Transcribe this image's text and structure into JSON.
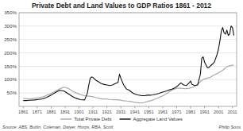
{
  "chart_data": {
    "type": "line",
    "title": "Private Debt and Land Values to GDP Ratios 1861 - 2012",
    "annotations": [
      "Source: ABS, Butlin, Coleman, Dwyer, Horps, RBA, Scott",
      "Philip Soos"
    ],
    "xlim": [
      1858,
      2014
    ],
    "xticks": [
      1861,
      1871,
      1881,
      1891,
      1901,
      1911,
      1921,
      1931,
      1941,
      1951,
      1961,
      1971,
      1981,
      1991,
      2001,
      2011
    ],
    "ylim": [
      0,
      350
    ],
    "yticks": [
      {
        "value": 50,
        "label": "50%"
      },
      {
        "value": 100,
        "label": "100%"
      },
      {
        "value": 150,
        "label": "150%"
      },
      {
        "value": 200,
        "label": "200%"
      },
      {
        "value": 250,
        "label": "250%"
      },
      {
        "value": 300,
        "label": "300%"
      },
      {
        "value": 350,
        "label": "350%"
      }
    ],
    "grid": true,
    "legend": "bottom",
    "series": [
      {
        "name": "Total Private Debt",
        "color": "#aaaaaa",
        "x": [
          1861,
          1863,
          1866,
          1869,
          1872,
          1875,
          1878,
          1881,
          1884,
          1887,
          1890,
          1893,
          1896,
          1899,
          1902,
          1905,
          1908,
          1911,
          1914,
          1917,
          1920,
          1923,
          1926,
          1929,
          1932,
          1935,
          1938,
          1941,
          1944,
          1947,
          1950,
          1953,
          1956,
          1959,
          1962,
          1965,
          1968,
          1971,
          1974,
          1977,
          1980,
          1983,
          1986,
          1989,
          1992,
          1995,
          1998,
          2001,
          2004,
          2007,
          2010,
          2012
        ],
        "values": [
          30,
          29,
          28,
          30,
          32,
          35,
          42,
          48,
          57,
          65,
          72,
          68,
          58,
          50,
          44,
          40,
          38,
          36,
          32,
          28,
          28,
          26,
          25,
          25,
          22,
          20,
          18,
          15,
          13,
          14,
          18,
          22,
          28,
          35,
          42,
          52,
          62,
          68,
          68,
          66,
          68,
          72,
          82,
          98,
          105,
          108,
          118,
          125,
          135,
          148,
          153,
          155
        ]
      },
      {
        "name": "Aggregate Land Values",
        "color": "#111111",
        "x": [
          1861,
          1863,
          1866,
          1869,
          1872,
          1875,
          1878,
          1881,
          1884,
          1887,
          1890,
          1893,
          1896,
          1899,
          1902,
          1905,
          1907,
          1908,
          1909,
          1910,
          1911,
          1913,
          1915,
          1917,
          1919,
          1921,
          1923,
          1925,
          1927,
          1929,
          1930,
          1931,
          1933,
          1935,
          1937,
          1939,
          1941,
          1943,
          1946,
          1948,
          1950,
          1952,
          1954,
          1956,
          1958,
          1960,
          1962,
          1964,
          1966,
          1968,
          1970,
          1972,
          1974,
          1976,
          1978,
          1980,
          1981,
          1982,
          1984,
          1986,
          1988,
          1989,
          1990,
          1991,
          1992,
          1993,
          1994,
          1995,
          1996,
          1997,
          1998,
          1999,
          2000,
          2001,
          2002,
          2003,
          2004,
          2005,
          2006,
          2007,
          2008,
          2009,
          2010,
          2011,
          2012
        ],
        "values": [
          22,
          22,
          23,
          24,
          26,
          28,
          34,
          42,
          52,
          60,
          58,
          48,
          38,
          30,
          25,
          24,
          50,
          80,
          105,
          110,
          108,
          98,
          92,
          85,
          82,
          80,
          78,
          80,
          85,
          90,
          120,
          105,
          80,
          65,
          60,
          52,
          46,
          43,
          40,
          40,
          42,
          42,
          43,
          45,
          48,
          52,
          55,
          58,
          62,
          65,
          70,
          78,
          88,
          80,
          78,
          88,
          95,
          82,
          78,
          80,
          120,
          180,
          185,
          165,
          155,
          145,
          145,
          150,
          155,
          160,
          165,
          180,
          195,
          215,
          245,
          280,
          295,
          275,
          270,
          285,
          265,
          270,
          300,
          295,
          265
        ]
      }
    ]
  }
}
